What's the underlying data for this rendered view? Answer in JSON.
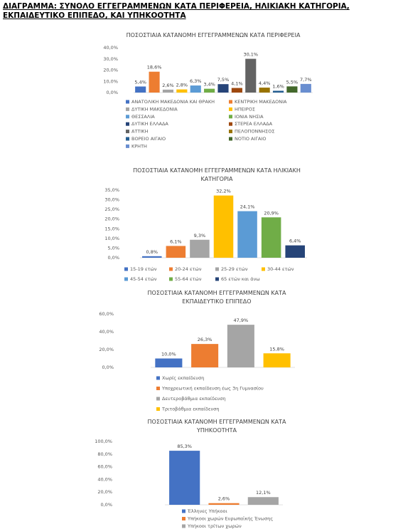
{
  "title": "ΔΙΑΓΡΑΜΜΑ: ΣΥΝΟΛΟ ΕΓΓΕΓΡΑΜΜΕΝΩΝ ΚΑΤΑ ΠΕΡΙΦΕΡΕΙΑ, ΗΛΙΚΙΑΚΗ ΚΑΤΗΓΟΡΙΑ, ΕΚΠΑΙΔΕΥΤΙΚΟ ΕΠΙΠΕΔΟ, ΚΑΙ ΥΠΗΚΟΟΤΗΤΑ",
  "chart_data": [
    {
      "type": "bar",
      "title": "ΠΟΣΟΣΤΙΑΙΑ ΚΑΤΑΝΟΜΗ ΕΓΓΕΓΡΑΜΜΕΝΩΝ ΚΑΤΑ ΠΕΡΙΦΕΡΕΙΑ",
      "ylim": [
        0,
        40
      ],
      "yticks": [
        {
          "value": 0,
          "label": "0,0%"
        },
        {
          "value": 10,
          "label": "10,0%"
        },
        {
          "value": 20,
          "label": "20,0%"
        },
        {
          "value": 30,
          "label": "30,0%"
        },
        {
          "value": 40,
          "label": "40,0%"
        }
      ],
      "series": [
        {
          "name": "ΑΝΑΤΟΛΙΚΗ ΜΑΚΕΔΟΝΙΑ ΚΑΙ ΘΡΑΚΗ",
          "color": "#4472c4",
          "values": [
            5.4
          ],
          "value_labels": [
            "5,4%"
          ]
        },
        {
          "name": "ΚΕΝΤΡΙΚΗ ΜΑΚΕΔΟΝΙΑ",
          "color": "#ed7d31",
          "values": [
            18.6
          ],
          "value_labels": [
            "18,6%"
          ]
        },
        {
          "name": "ΔΥΤΙΚΗ ΜΑΚΕΔΟΝΙΑ",
          "color": "#a5a5a5",
          "values": [
            2.6
          ],
          "value_labels": [
            "2,6%"
          ]
        },
        {
          "name": "ΗΠΕΙΡΟΣ",
          "color": "#ffc000",
          "values": [
            2.8
          ],
          "value_labels": [
            "2,8%"
          ]
        },
        {
          "name": "ΘΕΣΣΑΛΙΑ",
          "color": "#5b9bd5",
          "values": [
            6.3
          ],
          "value_labels": [
            "6,3%"
          ]
        },
        {
          "name": "ΙΟΝΙΑ ΝΗΣΙΑ",
          "color": "#70ad47",
          "values": [
            3.4
          ],
          "value_labels": [
            "3,4%"
          ]
        },
        {
          "name": "ΔΥΤΙΚΗ ΕΛΛΑΔΑ",
          "color": "#264478",
          "values": [
            7.5
          ],
          "value_labels": [
            "7,5%"
          ]
        },
        {
          "name": "ΣΤΕΡΕΑ ΕΛΛΑΔΑ",
          "color": "#9e480e",
          "values": [
            4.1
          ],
          "value_labels": [
            "4,1%"
          ]
        },
        {
          "name": "ΑΤΤΙΚΗ",
          "color": "#636363",
          "values": [
            30.1
          ],
          "value_labels": [
            "30,1%"
          ]
        },
        {
          "name": "ΠΕΛΟΠΟΝΝΗΣΟΣ",
          "color": "#997300",
          "values": [
            4.4
          ],
          "value_labels": [
            "4,4%"
          ]
        },
        {
          "name": "ΒΟΡΕΙΟ ΑΙΓΑΙΟ",
          "color": "#255e91",
          "values": [
            1.6
          ],
          "value_labels": [
            "1,6%"
          ]
        },
        {
          "name": "ΝΟΤΙΟ ΑΙΓΑΙΟ",
          "color": "#43682b",
          "values": [
            5.5
          ],
          "value_labels": [
            "5,5%"
          ]
        },
        {
          "name": "ΚΡΗΤΗ",
          "color": "#698ed0",
          "values": [
            7.7
          ],
          "value_labels": [
            "7,7%"
          ]
        }
      ]
    },
    {
      "type": "bar",
      "title": "ΠΟΣΟΣΤΙΑΙΑ ΚΑΤΑΝΟΜΗ ΕΓΓΕΓΡΑΜΜΕΝΩΝ  ΚΑΤΑ ΗΛΙΚΙΑΚΗ ΚΑΤΗΓΟΡΙΑ",
      "ylim": [
        0,
        35
      ],
      "yticks": [
        {
          "value": 0,
          "label": "0,0%"
        },
        {
          "value": 5,
          "label": "5,0%"
        },
        {
          "value": 10,
          "label": "10,0%"
        },
        {
          "value": 15,
          "label": "15,0%"
        },
        {
          "value": 20,
          "label": "20,0%"
        },
        {
          "value": 25,
          "label": "25,0%"
        },
        {
          "value": 30,
          "label": "30,0%"
        },
        {
          "value": 35,
          "label": "35,0%"
        }
      ],
      "series": [
        {
          "name": "15-19 ετών",
          "color": "#4472c4",
          "values": [
            0.8
          ],
          "value_labels": [
            "0,8%"
          ]
        },
        {
          "name": "20-24 ετών",
          "color": "#ed7d31",
          "values": [
            6.1
          ],
          "value_labels": [
            "6,1%"
          ]
        },
        {
          "name": "25-29 ετών",
          "color": "#a5a5a5",
          "values": [
            9.3
          ],
          "value_labels": [
            "9,3%"
          ]
        },
        {
          "name": "30-44 ετών",
          "color": "#ffc000",
          "values": [
            32.2
          ],
          "value_labels": [
            "32,2%"
          ]
        },
        {
          "name": "45-54 ετών",
          "color": "#5b9bd5",
          "values": [
            24.1
          ],
          "value_labels": [
            "24,1%"
          ]
        },
        {
          "name": "55-64 ετών",
          "color": "#70ad47",
          "values": [
            20.9
          ],
          "value_labels": [
            "20,9%"
          ]
        },
        {
          "name": "65 ετών και άνω",
          "color": "#264478",
          "values": [
            6.4
          ],
          "value_labels": [
            "6,4%"
          ]
        }
      ]
    },
    {
      "type": "bar",
      "title": "ΠΟΣΟΣΤΙΑΙΑ ΚΑΤΑΝΟΜΗ ΕΓΓΕΓΡΑΜΜΕΝΩΝ ΚΑΤΑ ΕΚΠΑΙΔΕΥΤΙΚΟ ΕΠΙΠΕΔΟ",
      "ylim": [
        0,
        60
      ],
      "yticks": [
        {
          "value": 0,
          "label": "0,0%"
        },
        {
          "value": 20,
          "label": "20,0%"
        },
        {
          "value": 40,
          "label": "40,0%"
        },
        {
          "value": 60,
          "label": "60,0%"
        }
      ],
      "series": [
        {
          "name": "Χωρίς εκπαίδευση",
          "color": "#4472c4",
          "values": [
            10.0
          ],
          "value_labels": [
            "10,0%"
          ]
        },
        {
          "name": "Υποχρεωτική εκπαίδευση έως 3η Γυμνασίου",
          "color": "#ed7d31",
          "values": [
            26.3
          ],
          "value_labels": [
            "26,3%"
          ]
        },
        {
          "name": "Δευτεροβάθμια εκπαίδευση",
          "color": "#a5a5a5",
          "values": [
            47.9
          ],
          "value_labels": [
            "47,9%"
          ]
        },
        {
          "name": "Τριτοβάθμια εκπαίδευση",
          "color": "#ffc000",
          "values": [
            15.8
          ],
          "value_labels": [
            "15,8%"
          ]
        }
      ]
    },
    {
      "type": "bar",
      "title": "ΠΟΣΟΣΤΙΑΙΑ ΚΑΤΑΝΟΜΗ  ΕΓΓΕΓΡΑΜΜΕΝΩΝ ΚΑΤΑ ΥΠΗΚΟΟΤΗΤΑ",
      "ylim": [
        0,
        100
      ],
      "yticks": [
        {
          "value": 0,
          "label": "0,0%"
        },
        {
          "value": 20,
          "label": "20,0%"
        },
        {
          "value": 40,
          "label": "40,0%"
        },
        {
          "value": 60,
          "label": "60,0%"
        },
        {
          "value": 80,
          "label": "80,0%"
        },
        {
          "value": 100,
          "label": "100,0%"
        }
      ],
      "series": [
        {
          "name": "Έλληνες Υπήκοοι",
          "color": "#4472c4",
          "values": [
            85.3
          ],
          "value_labels": [
            "85,3%"
          ]
        },
        {
          "name": "Υπήκοοι χωρών Ευρωπαϊκής Ένωσης",
          "color": "#ed7d31",
          "values": [
            2.6
          ],
          "value_labels": [
            "2,6%"
          ]
        },
        {
          "name": "Υπήκοοι τρίτων χωρών",
          "color": "#a5a5a5",
          "values": [
            12.1
          ],
          "value_labels": [
            "12,1%"
          ]
        }
      ]
    }
  ]
}
